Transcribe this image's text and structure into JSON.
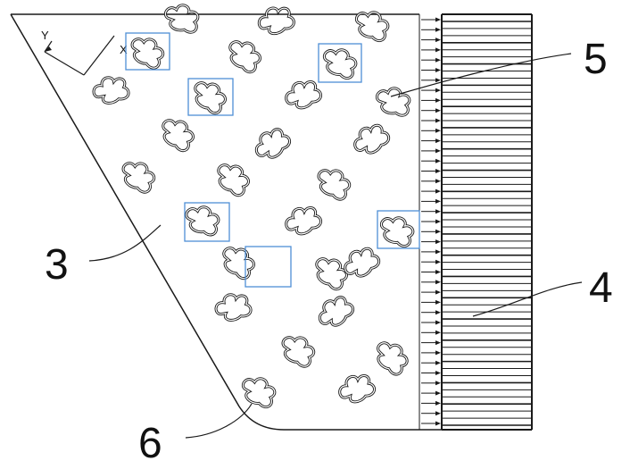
{
  "figure": {
    "callouts": [
      {
        "id": "c3",
        "label": "3"
      },
      {
        "id": "c4",
        "label": "4"
      },
      {
        "id": "c5",
        "label": "5"
      },
      {
        "id": "c6",
        "label": "6"
      }
    ],
    "axes": {
      "x_label": "X",
      "y_label": "Y"
    },
    "colors": {
      "line": "#1a1a1a",
      "highlight_box": "#4f8fd6",
      "background": "#ffffff"
    },
    "fin_count": 58,
    "highlighted_pin_count": 6
  }
}
